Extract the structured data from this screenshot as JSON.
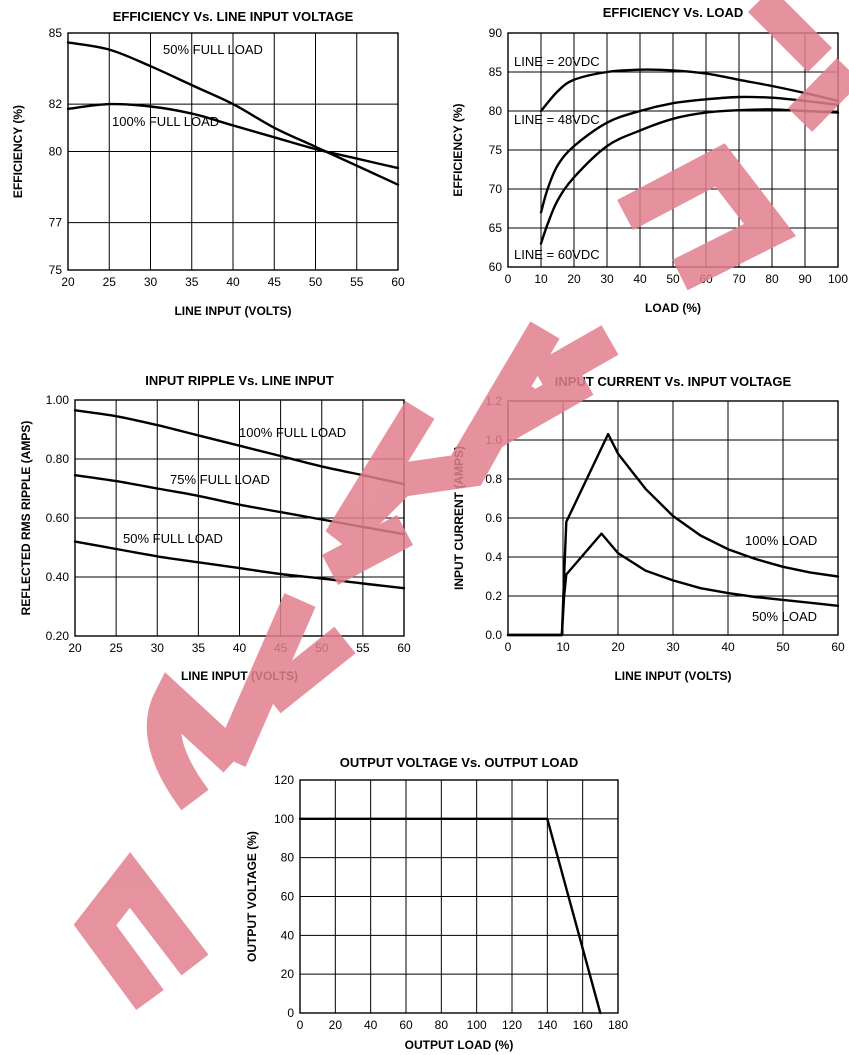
{
  "chart_data": [
    {
      "type": "line",
      "title": "EFFICIENCY Vs. LINE INPUT VOLTAGE",
      "xlabel": "LINE INPUT (VOLTS)",
      "ylabel": "EFFICIENCY (%)",
      "xlim": [
        20,
        60
      ],
      "ylim": [
        75,
        85
      ],
      "xticks": [
        20,
        25,
        30,
        35,
        40,
        45,
        50,
        55,
        60
      ],
      "yticks": [
        75,
        77,
        80,
        82,
        85
      ],
      "grid": true,
      "series": [
        {
          "name": "50% FULL LOAD",
          "x": [
            20,
            25,
            30,
            35,
            40,
            45,
            50,
            55,
            60
          ],
          "y": [
            84.6,
            84.3,
            83.6,
            82.8,
            82.0,
            81.0,
            80.2,
            79.4,
            78.6
          ]
        },
        {
          "name": "100% FULL LOAD",
          "x": [
            20,
            25,
            30,
            35,
            40,
            45,
            50,
            55,
            60
          ],
          "y": [
            81.8,
            82.0,
            81.9,
            81.6,
            81.1,
            80.6,
            80.1,
            79.7,
            79.3
          ]
        }
      ]
    },
    {
      "type": "line",
      "title": "EFFICIENCY Vs. LOAD",
      "xlabel": "LOAD (%)",
      "ylabel": "EFFICIENCY (%)",
      "xlim": [
        0,
        100
      ],
      "ylim": [
        60,
        90
      ],
      "xticks": [
        0,
        10,
        20,
        30,
        40,
        50,
        60,
        70,
        80,
        90,
        100
      ],
      "yticks": [
        60,
        65,
        70,
        75,
        80,
        85,
        90
      ],
      "grid": true,
      "series": [
        {
          "name": "LINE = 20VDC",
          "x": [
            10,
            15,
            20,
            30,
            40,
            50,
            60,
            70,
            80,
            90,
            100
          ],
          "y": [
            80,
            82.5,
            84,
            85,
            85.3,
            85.2,
            84.8,
            84,
            83.2,
            82.3,
            81.3
          ]
        },
        {
          "name": "LINE = 48VDC",
          "x": [
            10,
            12,
            15,
            20,
            30,
            40,
            50,
            60,
            70,
            80,
            90,
            100
          ],
          "y": [
            67,
            70,
            73,
            75.5,
            78.5,
            80,
            81,
            81.5,
            81.8,
            81.7,
            81.3,
            80.8
          ]
        },
        {
          "name": "LINE = 60VDC",
          "x": [
            10,
            12,
            15,
            20,
            30,
            40,
            50,
            60,
            70,
            80,
            90,
            100
          ],
          "y": [
            63,
            65.5,
            68.5,
            71.5,
            75.5,
            77.5,
            79,
            79.8,
            80.1,
            80.2,
            80,
            79.8
          ]
        }
      ]
    },
    {
      "type": "line",
      "title": "INPUT RIPPLE Vs. LINE INPUT",
      "xlabel": "LINE INPUT (VOLTS)",
      "ylabel": "REFLECTED RMS RIPPLE (AMPS)",
      "xlim": [
        20,
        60
      ],
      "ylim": [
        0.2,
        1.0
      ],
      "xticks": [
        20,
        25,
        30,
        35,
        40,
        45,
        50,
        55,
        60
      ],
      "yticks": [
        "0.20",
        "0.40",
        "0.60",
        "0.80",
        "1.00"
      ],
      "grid": true,
      "series": [
        {
          "name": "100% FULL LOAD",
          "x": [
            20,
            25,
            30,
            35,
            40,
            45,
            50,
            55,
            60
          ],
          "y": [
            0.965,
            0.945,
            0.915,
            0.88,
            0.845,
            0.81,
            0.775,
            0.745,
            0.715
          ]
        },
        {
          "name": "75% FULL LOAD",
          "x": [
            20,
            25,
            30,
            35,
            40,
            45,
            50,
            55,
            60
          ],
          "y": [
            0.745,
            0.725,
            0.7,
            0.675,
            0.645,
            0.62,
            0.595,
            0.57,
            0.545
          ]
        },
        {
          "name": "50% FULL LOAD",
          "x": [
            20,
            25,
            30,
            35,
            40,
            45,
            50,
            55,
            60
          ],
          "y": [
            0.52,
            0.495,
            0.47,
            0.45,
            0.43,
            0.41,
            0.395,
            0.378,
            0.362
          ]
        }
      ]
    },
    {
      "type": "line",
      "title": "INPUT CURRENT Vs. INPUT VOLTAGE",
      "xlabel": "LINE INPUT (VOLTS)",
      "ylabel": "INPUT CURRENT (AMPS)",
      "xlim": [
        0,
        60
      ],
      "ylim": [
        0,
        1.2
      ],
      "xticks": [
        0,
        10,
        20,
        30,
        40,
        50,
        60
      ],
      "yticks": [
        "0.0",
        "0.2",
        "0.4",
        "0.6",
        "0.8",
        "1.0",
        "1.2"
      ],
      "grid": true,
      "series": [
        {
          "name": "100% LOAD",
          "x": [
            0,
            9.8,
            10.2,
            10.6,
            18.2,
            20,
            25,
            30,
            35,
            40,
            45,
            50,
            55,
            60
          ],
          "y": [
            0,
            0,
            0.3,
            0.58,
            1.03,
            0.93,
            0.75,
            0.61,
            0.51,
            0.44,
            0.39,
            0.35,
            0.32,
            0.3
          ]
        },
        {
          "name": "50% LOAD",
          "x": [
            0,
            9.8,
            10.2,
            10.6,
            17,
            20,
            25,
            30,
            35,
            40,
            45,
            50,
            55,
            60
          ],
          "y": [
            0,
            0,
            0.2,
            0.31,
            0.52,
            0.42,
            0.33,
            0.28,
            0.24,
            0.215,
            0.195,
            0.18,
            0.165,
            0.15
          ]
        }
      ]
    },
    {
      "type": "line",
      "title": "OUTPUT VOLTAGE Vs. OUTPUT LOAD",
      "xlabel": "OUTPUT LOAD (%)",
      "ylabel": "OUTPUT VOLTAGE (%)",
      "xlim": [
        0,
        180
      ],
      "ylim": [
        0,
        120
      ],
      "xticks": [
        0,
        20,
        40,
        60,
        80,
        100,
        120,
        140,
        160,
        180
      ],
      "yticks": [
        0,
        20,
        40,
        60,
        80,
        100,
        120
      ],
      "grid": true,
      "series": [
        {
          "x": [
            0,
            140,
            170
          ],
          "y": [
            100,
            100,
            0
          ]
        }
      ]
    }
  ],
  "watermark": {
    "text": "ESTIMATED PRICE",
    "color": "#e2808e"
  }
}
